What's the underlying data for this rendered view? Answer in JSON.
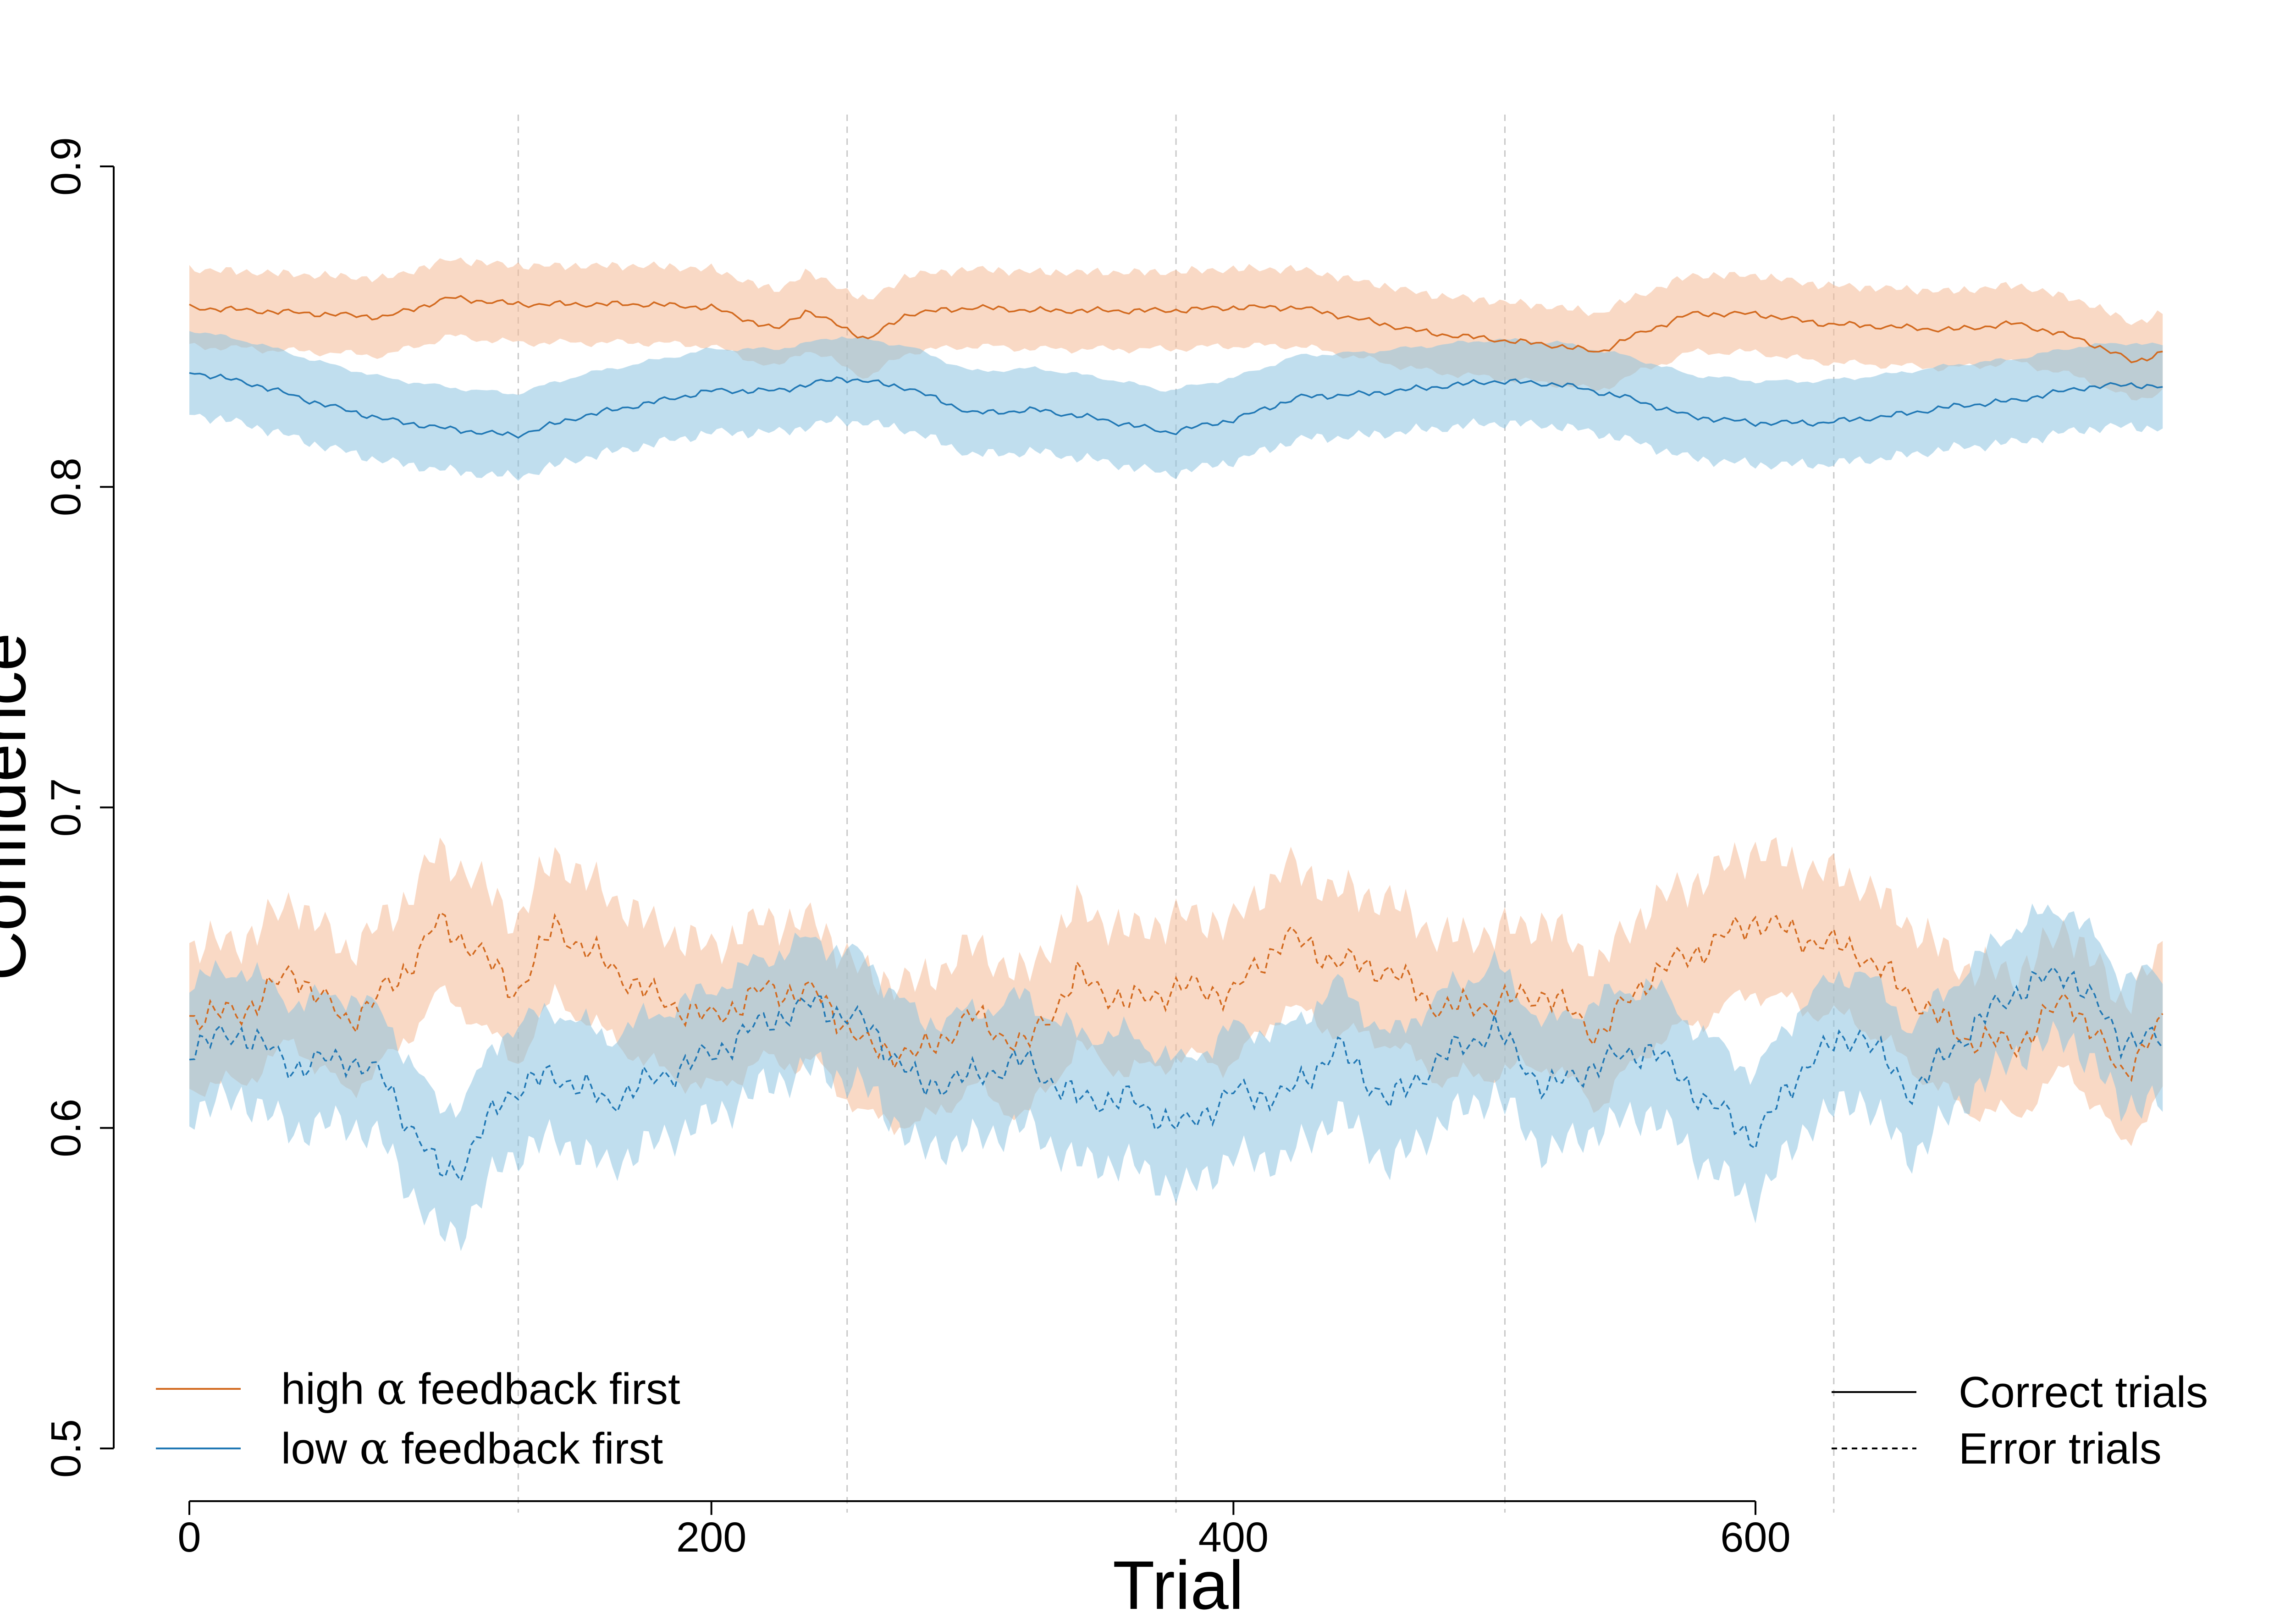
{
  "colors": {
    "high": "#D2691E",
    "high_band": "#F4B996",
    "low": "#1F77B4",
    "low_band": "#8CC3E0",
    "axis": "#000000",
    "grid": "#C8C8C8"
  },
  "chart_data": {
    "type": "line",
    "title": "",
    "xlabel": "Trial",
    "ylabel": "Confidence",
    "xlim": [
      0,
      756
    ],
    "ylim": [
      0.5,
      0.9
    ],
    "x_axis_range": [
      0,
      600
    ],
    "xticks": [
      0,
      200,
      400,
      600
    ],
    "xtick_labels": [
      "0",
      "200",
      "400",
      "600"
    ],
    "yticks": [
      0.5,
      0.6,
      0.7,
      0.8,
      0.9
    ],
    "ytick_labels": [
      "0.5",
      "0.6",
      "0.7",
      "0.8",
      "0.9"
    ],
    "vlines": [
      126,
      252,
      378,
      504,
      630
    ],
    "grid": false,
    "legend_placement": "bottom-left and bottom-right",
    "legend_condition": [
      {
        "label_pre": "high ",
        "label_symbol": "α",
        "label_post": " feedback first",
        "color_key": "high"
      },
      {
        "label_pre": "low ",
        "label_symbol": "α",
        "label_post": " feedback first",
        "color_key": "low"
      }
    ],
    "legend_linetype": [
      {
        "label": "Correct trials",
        "style": "solid"
      },
      {
        "label": "Error trials",
        "style": "dashed"
      }
    ],
    "series": [
      {
        "group": "high",
        "trials": "correct",
        "style": "solid",
        "x": [
          0,
          25,
          50,
          75,
          100,
          125,
          150,
          175,
          200,
          225,
          236,
          250,
          260,
          275,
          300,
          325,
          350,
          375,
          400,
          425,
          450,
          475,
          500,
          525,
          540,
          550,
          575,
          600,
          625,
          650,
          675,
          700,
          725,
          745,
          756
        ],
        "y": [
          0.856,
          0.855,
          0.854,
          0.853,
          0.859,
          0.857,
          0.857,
          0.857,
          0.856,
          0.849,
          0.855,
          0.85,
          0.846,
          0.854,
          0.856,
          0.855,
          0.855,
          0.855,
          0.856,
          0.856,
          0.852,
          0.848,
          0.846,
          0.844,
          0.842,
          0.846,
          0.854,
          0.854,
          0.851,
          0.85,
          0.849,
          0.851,
          0.846,
          0.839,
          0.842
        ],
        "band": 0.012
      },
      {
        "group": "low",
        "trials": "correct",
        "style": "solid",
        "x": [
          0,
          25,
          50,
          75,
          100,
          125,
          150,
          175,
          200,
          225,
          250,
          275,
          300,
          325,
          350,
          375,
          400,
          425,
          450,
          475,
          500,
          525,
          550,
          575,
          600,
          625,
          650,
          675,
          700,
          725,
          745,
          756
        ],
        "y": [
          0.836,
          0.832,
          0.826,
          0.821,
          0.818,
          0.816,
          0.822,
          0.826,
          0.83,
          0.83,
          0.834,
          0.831,
          0.823,
          0.824,
          0.821,
          0.817,
          0.821,
          0.828,
          0.829,
          0.831,
          0.833,
          0.832,
          0.828,
          0.822,
          0.82,
          0.82,
          0.822,
          0.825,
          0.827,
          0.831,
          0.832,
          0.831
        ],
        "band": 0.013
      },
      {
        "group": "high",
        "trials": "error",
        "style": "dashed",
        "x": [
          0,
          20,
          40,
          60,
          80,
          95,
          110,
          125,
          140,
          160,
          180,
          200,
          220,
          240,
          260,
          280,
          300,
          320,
          340,
          360,
          380,
          400,
          420,
          440,
          460,
          480,
          500,
          520,
          540,
          560,
          580,
          600,
          620,
          640,
          660,
          680,
          700,
          720,
          740,
          756
        ],
        "y": [
          0.635,
          0.636,
          0.649,
          0.633,
          0.646,
          0.664,
          0.656,
          0.642,
          0.663,
          0.651,
          0.64,
          0.634,
          0.643,
          0.642,
          0.625,
          0.623,
          0.635,
          0.625,
          0.647,
          0.639,
          0.644,
          0.642,
          0.66,
          0.652,
          0.649,
          0.637,
          0.639,
          0.642,
          0.629,
          0.648,
          0.656,
          0.665,
          0.659,
          0.655,
          0.641,
          0.628,
          0.626,
          0.641,
          0.617,
          0.632
        ],
        "band": 0.022
      },
      {
        "group": "low",
        "trials": "error",
        "style": "dashed",
        "x": [
          0,
          20,
          40,
          60,
          75,
          85,
          95,
          105,
          120,
          140,
          160,
          180,
          200,
          220,
          240,
          260,
          280,
          300,
          320,
          340,
          360,
          380,
          400,
          420,
          440,
          460,
          480,
          500,
          520,
          540,
          560,
          580,
          600,
          620,
          640,
          660,
          680,
          700,
          720,
          740,
          756
        ],
        "y": [
          0.625,
          0.63,
          0.619,
          0.622,
          0.615,
          0.6,
          0.587,
          0.588,
          0.61,
          0.617,
          0.608,
          0.616,
          0.623,
          0.633,
          0.639,
          0.632,
          0.613,
          0.616,
          0.621,
          0.609,
          0.609,
          0.6,
          0.611,
          0.61,
          0.625,
          0.608,
          0.622,
          0.631,
          0.612,
          0.62,
          0.625,
          0.609,
          0.597,
          0.621,
          0.63,
          0.611,
          0.629,
          0.643,
          0.649,
          0.628,
          0.627
        ],
        "band": 0.02
      }
    ]
  }
}
